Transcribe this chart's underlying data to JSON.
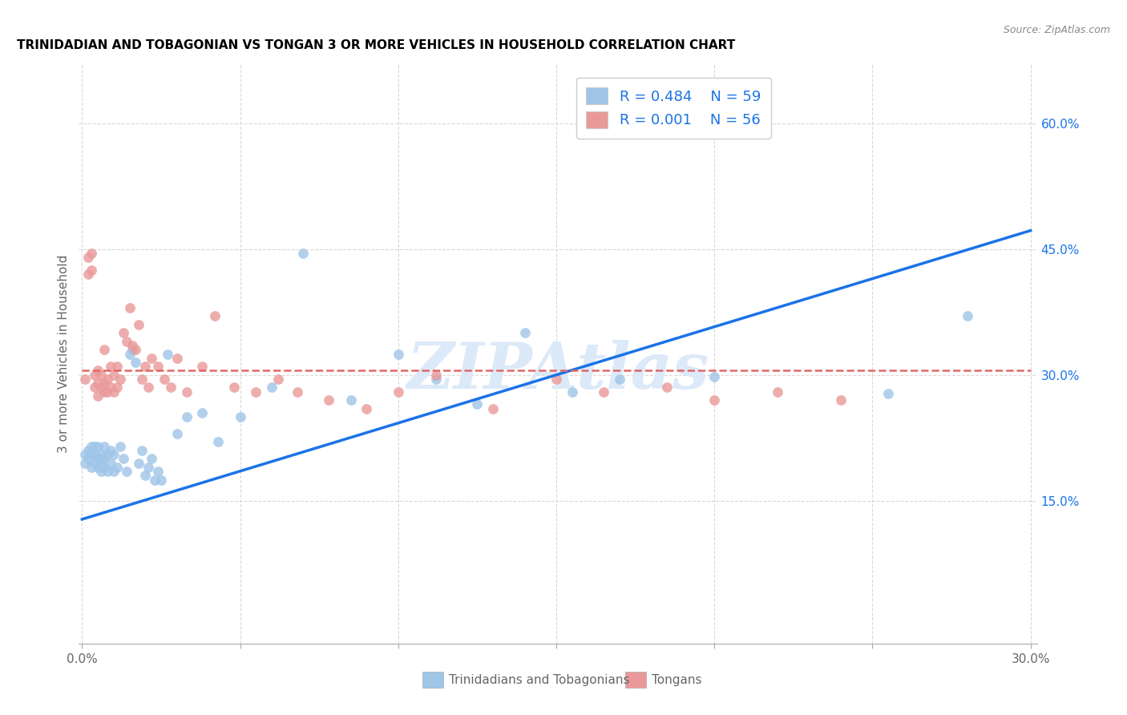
{
  "title": "TRINIDADIAN AND TOBAGONIAN VS TONGAN 3 OR MORE VEHICLES IN HOUSEHOLD CORRELATION CHART",
  "source": "Source: ZipAtlas.com",
  "xlabel_blue": "Trinidadians and Tobagonians",
  "xlabel_pink": "Tongans",
  "ylabel": "3 or more Vehicles in Household",
  "xlim": [
    -0.001,
    0.302
  ],
  "ylim": [
    -0.02,
    0.67
  ],
  "xtick_positions": [
    0.0,
    0.05,
    0.1,
    0.15,
    0.2,
    0.25,
    0.3
  ],
  "ytick_right_positions": [
    0.15,
    0.3,
    0.45,
    0.6
  ],
  "yticklabels_right": [
    "15.0%",
    "30.0%",
    "45.0%",
    "60.0%"
  ],
  "R_blue": 0.484,
  "N_blue": 59,
  "R_pink": 0.001,
  "N_pink": 56,
  "blue_scatter_color": "#9fc5e8",
  "pink_scatter_color": "#ea9999",
  "blue_line_color": "#1a73e8",
  "pink_line_color": "#e06666",
  "legend_text_color": "#1a73e8",
  "axis_label_color": "#666666",
  "grid_color": "#d9d9d9",
  "watermark_color": "#dce9f8",
  "blue_trendline": [
    0.0,
    0.128,
    0.3,
    0.472
  ],
  "pink_trendline": [
    0.0,
    0.305,
    0.3,
    0.305
  ],
  "blue_points_x": [
    0.001,
    0.001,
    0.002,
    0.002,
    0.003,
    0.003,
    0.003,
    0.004,
    0.004,
    0.004,
    0.005,
    0.005,
    0.005,
    0.006,
    0.006,
    0.006,
    0.006,
    0.007,
    0.007,
    0.007,
    0.008,
    0.008,
    0.009,
    0.009,
    0.01,
    0.01,
    0.011,
    0.012,
    0.013,
    0.014,
    0.015,
    0.016,
    0.017,
    0.018,
    0.019,
    0.02,
    0.021,
    0.022,
    0.023,
    0.024,
    0.025,
    0.027,
    0.03,
    0.033,
    0.038,
    0.043,
    0.05,
    0.06,
    0.07,
    0.085,
    0.1,
    0.112,
    0.125,
    0.14,
    0.155,
    0.17,
    0.2,
    0.255,
    0.28
  ],
  "blue_points_y": [
    0.205,
    0.195,
    0.2,
    0.21,
    0.205,
    0.19,
    0.215,
    0.195,
    0.205,
    0.215,
    0.19,
    0.2,
    0.215,
    0.185,
    0.195,
    0.205,
    0.2,
    0.19,
    0.2,
    0.215,
    0.185,
    0.205,
    0.195,
    0.21,
    0.205,
    0.185,
    0.19,
    0.215,
    0.2,
    0.185,
    0.325,
    0.33,
    0.315,
    0.195,
    0.21,
    0.18,
    0.19,
    0.2,
    0.175,
    0.185,
    0.175,
    0.325,
    0.23,
    0.25,
    0.255,
    0.22,
    0.25,
    0.285,
    0.445,
    0.27,
    0.325,
    0.295,
    0.265,
    0.35,
    0.28,
    0.295,
    0.298,
    0.278,
    0.37
  ],
  "pink_points_x": [
    0.001,
    0.002,
    0.002,
    0.003,
    0.003,
    0.004,
    0.004,
    0.005,
    0.005,
    0.005,
    0.006,
    0.006,
    0.007,
    0.007,
    0.007,
    0.008,
    0.008,
    0.009,
    0.009,
    0.01,
    0.01,
    0.011,
    0.011,
    0.012,
    0.013,
    0.014,
    0.015,
    0.016,
    0.017,
    0.018,
    0.019,
    0.02,
    0.021,
    0.022,
    0.024,
    0.026,
    0.028,
    0.03,
    0.033,
    0.038,
    0.042,
    0.048,
    0.055,
    0.062,
    0.068,
    0.078,
    0.09,
    0.1,
    0.112,
    0.13,
    0.15,
    0.165,
    0.185,
    0.2,
    0.22,
    0.24
  ],
  "pink_points_y": [
    0.295,
    0.44,
    0.42,
    0.445,
    0.425,
    0.285,
    0.3,
    0.305,
    0.29,
    0.275,
    0.3,
    0.285,
    0.33,
    0.29,
    0.28,
    0.295,
    0.28,
    0.31,
    0.285,
    0.3,
    0.28,
    0.285,
    0.31,
    0.295,
    0.35,
    0.34,
    0.38,
    0.335,
    0.33,
    0.36,
    0.295,
    0.31,
    0.285,
    0.32,
    0.31,
    0.295,
    0.285,
    0.32,
    0.28,
    0.31,
    0.37,
    0.285,
    0.28,
    0.295,
    0.28,
    0.27,
    0.26,
    0.28,
    0.3,
    0.26,
    0.295,
    0.28,
    0.285,
    0.27,
    0.28,
    0.27
  ]
}
